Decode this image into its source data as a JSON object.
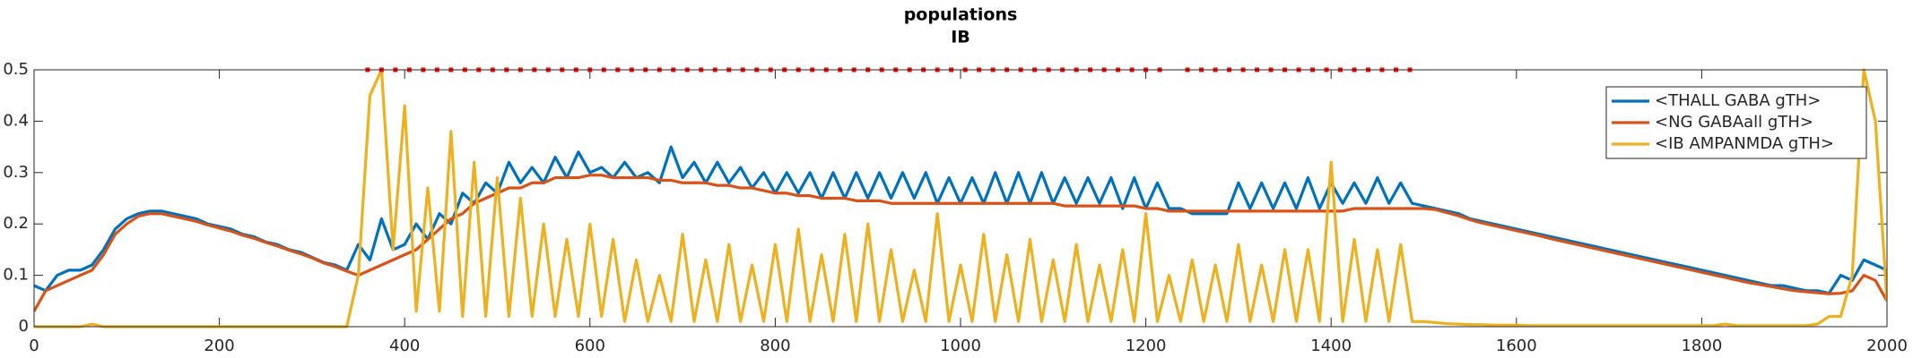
{
  "chart_data": {
    "type": "line",
    "title": "populations",
    "subtitle": "IB",
    "x": [
      0,
      12.5,
      25,
      37.5,
      50,
      62.5,
      75,
      87.5,
      100,
      112.5,
      125,
      137.5,
      150,
      162.5,
      175,
      187.5,
      200,
      212.5,
      225,
      237.5,
      250,
      262.5,
      275,
      287.5,
      300,
      312.5,
      325,
      337.5,
      350,
      362.5,
      375,
      387.5,
      400,
      412.5,
      425,
      437.5,
      450,
      462.5,
      475,
      487.5,
      500,
      512.5,
      525,
      537.5,
      550,
      562.5,
      575,
      587.5,
      600,
      612.5,
      625,
      637.5,
      650,
      662.5,
      675,
      687.5,
      700,
      712.5,
      725,
      737.5,
      750,
      762.5,
      775,
      787.5,
      800,
      812.5,
      825,
      837.5,
      850,
      862.5,
      875,
      887.5,
      900,
      912.5,
      925,
      937.5,
      950,
      962.5,
      975,
      987.5,
      1000,
      1012.5,
      1025,
      1037.5,
      1050,
      1062.5,
      1075,
      1087.5,
      1100,
      1112.5,
      1125,
      1137.5,
      1150,
      1162.5,
      1175,
      1187.5,
      1200,
      1212.5,
      1225,
      1237.5,
      1250,
      1262.5,
      1275,
      1287.5,
      1300,
      1312.5,
      1325,
      1337.5,
      1350,
      1362.5,
      1375,
      1387.5,
      1400,
      1412.5,
      1425,
      1437.5,
      1450,
      1462.5,
      1475,
      1487.5,
      1500,
      1512.5,
      1525,
      1537.5,
      1550,
      1562.5,
      1575,
      1587.5,
      1600,
      1612.5,
      1625,
      1637.5,
      1650,
      1662.5,
      1675,
      1687.5,
      1700,
      1712.5,
      1725,
      1737.5,
      1750,
      1762.5,
      1775,
      1787.5,
      1800,
      1812.5,
      1825,
      1837.5,
      1850,
      1862.5,
      1875,
      1887.5,
      1900,
      1912.5,
      1925,
      1937.5,
      1950,
      1962.5,
      1975,
      1987.5,
      2000
    ],
    "series": [
      {
        "name": "<THALL GABA gTH>",
        "color": "#0072bd",
        "values": [
          0.08,
          0.07,
          0.1,
          0.11,
          0.11,
          0.12,
          0.15,
          0.19,
          0.21,
          0.22,
          0.225,
          0.225,
          0.22,
          0.215,
          0.21,
          0.2,
          0.195,
          0.19,
          0.18,
          0.175,
          0.165,
          0.16,
          0.15,
          0.145,
          0.135,
          0.125,
          0.12,
          0.11,
          0.16,
          0.13,
          0.21,
          0.15,
          0.16,
          0.2,
          0.17,
          0.22,
          0.2,
          0.26,
          0.24,
          0.28,
          0.26,
          0.32,
          0.28,
          0.31,
          0.28,
          0.33,
          0.29,
          0.34,
          0.3,
          0.31,
          0.29,
          0.32,
          0.29,
          0.3,
          0.28,
          0.35,
          0.29,
          0.32,
          0.28,
          0.32,
          0.28,
          0.31,
          0.27,
          0.3,
          0.26,
          0.3,
          0.26,
          0.3,
          0.25,
          0.3,
          0.25,
          0.3,
          0.25,
          0.3,
          0.25,
          0.3,
          0.25,
          0.3,
          0.24,
          0.29,
          0.24,
          0.29,
          0.24,
          0.3,
          0.24,
          0.3,
          0.24,
          0.3,
          0.24,
          0.29,
          0.24,
          0.29,
          0.24,
          0.29,
          0.23,
          0.29,
          0.23,
          0.28,
          0.23,
          0.23,
          0.22,
          0.22,
          0.22,
          0.22,
          0.28,
          0.23,
          0.28,
          0.23,
          0.28,
          0.23,
          0.29,
          0.23,
          0.28,
          0.24,
          0.28,
          0.24,
          0.29,
          0.24,
          0.28,
          0.24,
          0.235,
          0.23,
          0.225,
          0.22,
          0.21,
          0.205,
          0.2,
          0.195,
          0.19,
          0.185,
          0.18,
          0.175,
          0.17,
          0.165,
          0.16,
          0.155,
          0.15,
          0.145,
          0.14,
          0.135,
          0.13,
          0.125,
          0.12,
          0.115,
          0.11,
          0.105,
          0.1,
          0.095,
          0.09,
          0.085,
          0.08,
          0.08,
          0.075,
          0.07,
          0.07,
          0.065,
          0.1,
          0.09,
          0.13,
          0.12,
          0.11
        ]
      },
      {
        "name": "<NG GABAall gTH>",
        "color": "#d95319",
        "values": [
          0.03,
          0.07,
          0.08,
          0.09,
          0.1,
          0.11,
          0.14,
          0.18,
          0.2,
          0.215,
          0.22,
          0.22,
          0.215,
          0.21,
          0.205,
          0.198,
          0.192,
          0.186,
          0.178,
          0.172,
          0.164,
          0.157,
          0.149,
          0.142,
          0.134,
          0.124,
          0.117,
          0.108,
          0.1,
          0.11,
          0.12,
          0.13,
          0.14,
          0.15,
          0.17,
          0.19,
          0.21,
          0.22,
          0.24,
          0.25,
          0.26,
          0.27,
          0.27,
          0.28,
          0.28,
          0.29,
          0.29,
          0.29,
          0.295,
          0.295,
          0.29,
          0.29,
          0.29,
          0.29,
          0.285,
          0.285,
          0.28,
          0.28,
          0.28,
          0.275,
          0.275,
          0.27,
          0.27,
          0.265,
          0.26,
          0.26,
          0.255,
          0.255,
          0.25,
          0.25,
          0.25,
          0.245,
          0.245,
          0.245,
          0.24,
          0.24,
          0.24,
          0.24,
          0.24,
          0.24,
          0.24,
          0.24,
          0.24,
          0.24,
          0.24,
          0.24,
          0.24,
          0.24,
          0.24,
          0.235,
          0.235,
          0.235,
          0.235,
          0.235,
          0.235,
          0.235,
          0.23,
          0.23,
          0.225,
          0.225,
          0.225,
          0.225,
          0.225,
          0.225,
          0.225,
          0.225,
          0.225,
          0.225,
          0.225,
          0.225,
          0.225,
          0.225,
          0.225,
          0.225,
          0.23,
          0.23,
          0.23,
          0.23,
          0.23,
          0.23,
          0.23,
          0.228,
          0.222,
          0.216,
          0.208,
          0.202,
          0.197,
          0.192,
          0.187,
          0.182,
          0.177,
          0.171,
          0.166,
          0.161,
          0.156,
          0.151,
          0.146,
          0.141,
          0.136,
          0.131,
          0.126,
          0.121,
          0.116,
          0.111,
          0.106,
          0.101,
          0.096,
          0.091,
          0.086,
          0.082,
          0.078,
          0.074,
          0.07,
          0.068,
          0.066,
          0.064,
          0.065,
          0.07,
          0.1,
          0.09,
          0.05
        ]
      },
      {
        "name": "<IB AMPANMDA gTH>",
        "color": "#edb120",
        "values": [
          0,
          0,
          0,
          0,
          0,
          0.005,
          0,
          0,
          0,
          0,
          0,
          0,
          0,
          0,
          0,
          0,
          0,
          0,
          0,
          0,
          0,
          0,
          0,
          0,
          0,
          0,
          0,
          0,
          0.1,
          0.45,
          0.5,
          0.15,
          0.43,
          0.03,
          0.27,
          0.03,
          0.38,
          0.02,
          0.32,
          0.02,
          0.29,
          0.02,
          0.25,
          0.02,
          0.2,
          0.02,
          0.17,
          0.02,
          0.2,
          0.02,
          0.17,
          0.01,
          0.13,
          0.01,
          0.1,
          0.01,
          0.18,
          0.01,
          0.13,
          0.01,
          0.16,
          0.01,
          0.12,
          0.01,
          0.16,
          0.01,
          0.19,
          0.01,
          0.14,
          0.01,
          0.18,
          0.01,
          0.2,
          0.01,
          0.15,
          0.01,
          0.11,
          0.01,
          0.22,
          0.01,
          0.12,
          0.01,
          0.18,
          0.01,
          0.14,
          0.01,
          0.17,
          0.01,
          0.13,
          0.01,
          0.16,
          0.01,
          0.12,
          0.01,
          0.15,
          0.01,
          0.22,
          0.01,
          0.1,
          0.01,
          0.13,
          0.01,
          0.12,
          0.01,
          0.16,
          0.01,
          0.12,
          0.01,
          0.15,
          0.01,
          0.15,
          0.01,
          0.32,
          0.01,
          0.17,
          0.01,
          0.15,
          0.01,
          0.16,
          0.01,
          0.01,
          0.008,
          0.006,
          0.005,
          0.004,
          0.004,
          0.003,
          0.003,
          0.003,
          0.002,
          0.002,
          0.002,
          0.002,
          0.002,
          0.002,
          0.002,
          0.002,
          0.002,
          0.002,
          0.002,
          0.002,
          0.002,
          0.002,
          0.002,
          0.002,
          0.002,
          0.005,
          0.002,
          0.002,
          0.002,
          0.002,
          0.002,
          0.002,
          0.002,
          0.005,
          0.02,
          0.02,
          0.1,
          0.5,
          0.4,
          0.05
        ]
      }
    ],
    "dots": {
      "color": "#ff0000",
      "y": 0.5,
      "x": [
        360,
        375,
        390,
        405,
        420,
        435,
        450,
        465,
        480,
        495,
        510,
        525,
        540,
        555,
        570,
        585,
        600,
        615,
        630,
        645,
        660,
        675,
        690,
        705,
        720,
        735,
        750,
        765,
        780,
        795,
        810,
        825,
        840,
        855,
        870,
        885,
        900,
        915,
        930,
        945,
        960,
        975,
        990,
        1005,
        1020,
        1035,
        1050,
        1065,
        1080,
        1095,
        1110,
        1125,
        1140,
        1155,
        1170,
        1185,
        1200,
        1215,
        1245,
        1260,
        1275,
        1290,
        1305,
        1320,
        1335,
        1350,
        1365,
        1380,
        1395,
        1410,
        1425,
        1440,
        1455,
        1470,
        1485
      ]
    },
    "xlim": [
      0,
      2000
    ],
    "xticks": [
      0,
      200,
      400,
      600,
      800,
      1000,
      1200,
      1400,
      1600,
      1800,
      2000
    ],
    "ylim": [
      0,
      0.5
    ],
    "yticks": [
      0,
      0.1,
      0.2,
      0.3,
      0.4,
      0.5
    ],
    "legend": "upper right"
  }
}
